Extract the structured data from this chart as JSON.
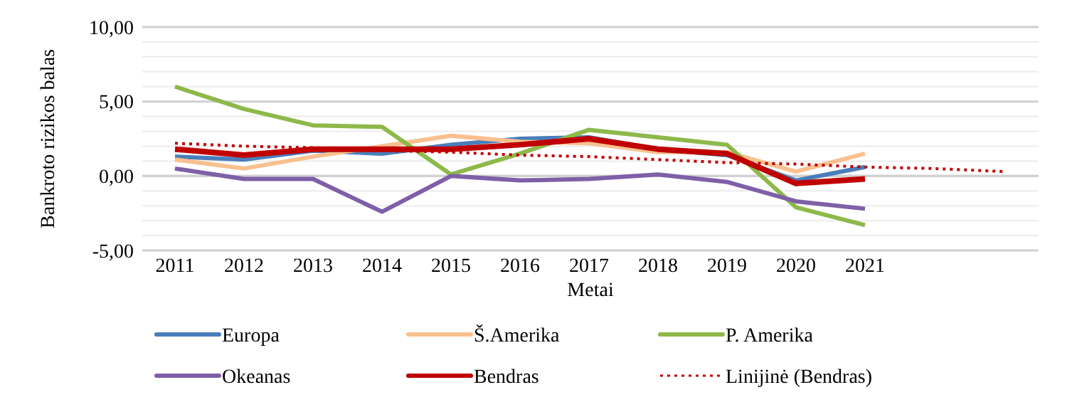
{
  "chart_data": {
    "type": "line",
    "ylabel": "Bankroto rizikos balas",
    "xlabel": "Metai",
    "categories": [
      "2011",
      "2012",
      "2013",
      "2014",
      "2015",
      "2016",
      "2017",
      "2018",
      "2019",
      "2020",
      "2021",
      null,
      null
    ],
    "series": [
      {
        "name": "Europa",
        "color": "#4a7ebb",
        "values": [
          1.3,
          1.1,
          1.7,
          1.5,
          2.1,
          2.5,
          2.6,
          1.8,
          1.4,
          -0.3,
          0.6,
          null,
          null
        ]
      },
      {
        "name": "Š.Amerika",
        "color": "#f9c08f",
        "values": [
          1.1,
          0.5,
          1.3,
          2.0,
          2.7,
          2.3,
          2.2,
          1.6,
          1.6,
          0.3,
          1.5,
          null,
          null
        ]
      },
      {
        "name": "P. Amerika",
        "color": "#8db94a",
        "values": [
          6.0,
          4.5,
          3.4,
          3.3,
          0.1,
          1.5,
          3.1,
          2.6,
          2.1,
          -2.1,
          -3.3,
          null,
          null
        ]
      },
      {
        "name": "Okeanas",
        "color": "#7f5fa8",
        "values": [
          0.5,
          -0.2,
          -0.2,
          -2.4,
          0.0,
          -0.3,
          -0.2,
          0.1,
          -0.4,
          -1.7,
          -2.2,
          null,
          null
        ]
      },
      {
        "name": "Bendras",
        "color": "#c00000",
        "values": [
          1.8,
          1.4,
          1.8,
          1.8,
          1.8,
          2.1,
          2.5,
          1.8,
          1.5,
          -0.5,
          -0.2,
          null,
          null
        ]
      },
      {
        "name": "Linijinė (Bendras)",
        "color": "#c00000",
        "line_style": "dotted",
        "values": [
          2.2,
          2.0,
          1.9,
          1.7,
          1.6,
          1.4,
          1.3,
          1.1,
          0.9,
          0.8,
          0.6,
          0.5,
          0.3
        ]
      }
    ],
    "ylim": [
      -5,
      10
    ],
    "yticks": [
      {
        "value": -5,
        "label": "-5,00"
      },
      {
        "value": -4,
        "label": null
      },
      {
        "value": -3,
        "label": null
      },
      {
        "value": -2,
        "label": null
      },
      {
        "value": -1,
        "label": null
      },
      {
        "value": 0,
        "label": "0,00"
      },
      {
        "value": 1,
        "label": null
      },
      {
        "value": 2,
        "label": null
      },
      {
        "value": 3,
        "label": null
      },
      {
        "value": 4,
        "label": null
      },
      {
        "value": 5,
        "label": "5,00"
      },
      {
        "value": 6,
        "label": null
      },
      {
        "value": 7,
        "label": null
      },
      {
        "value": 8,
        "label": null
      },
      {
        "value": 9,
        "label": null
      },
      {
        "value": 10,
        "label": "10,00"
      }
    ],
    "grid": "y",
    "legend": "bottom",
    "line_style": "solid",
    "marker": "none"
  }
}
